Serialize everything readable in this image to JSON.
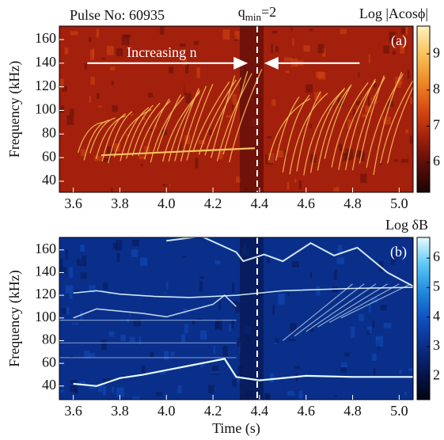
{
  "chart_data": [
    {
      "type": "spectrogram",
      "title": "Pulse No: 60935",
      "panel_label": "(a)",
      "marker_label": {
        "base": "q",
        "subscript": "min",
        "suffix": "=2"
      },
      "marker_x": 4.39,
      "annotation": "Increasing n",
      "ylabel": "Frequency (kHz)",
      "colorbar_label": "Log |Acosϕ|",
      "xlim": [
        3.54,
        5.06
      ],
      "xticks": [
        3.6,
        3.8,
        {
          "value": 4,
          "label": "4.0"
        },
        4.2,
        4.4,
        4.6,
        4.8,
        {
          "value": 5,
          "label": "5.0"
        }
      ],
      "ylim": [
        30.6,
        171.4
      ],
      "yticks": [
        40,
        60,
        80,
        100,
        120,
        140,
        160
      ],
      "clim": [
        5.17,
        9.77
      ],
      "cticks": [
        6,
        7,
        8,
        9
      ],
      "colormap": [
        "#1a0505",
        "#5a0d08",
        "#a3200c",
        "#d84a12",
        "#f08a25",
        "#f8c25a",
        "#fff3c0"
      ]
    },
    {
      "type": "spectrogram",
      "panel_label": "(b)",
      "ylabel": "Frequency (kHz)",
      "xlabel": "Time (s)",
      "colorbar_label": "Log δB",
      "marker_x": 4.39,
      "xlim": [
        3.54,
        5.06
      ],
      "xticks": [
        3.6,
        3.8,
        {
          "value": 4,
          "label": "4.0"
        },
        4.2,
        4.4,
        4.6,
        4.8,
        {
          "value": 5,
          "label": "5.0"
        }
      ],
      "ylim": [
        28,
        171
      ],
      "yticks": [
        40,
        60,
        80,
        100,
        120,
        140,
        160
      ],
      "clim": [
        1.2,
        6.7
      ],
      "cticks": [
        2,
        3,
        4,
        5,
        6
      ],
      "colormap": [
        "#000510",
        "#07164f",
        "#0a2f8a",
        "#1050c0",
        "#1e8ae0",
        "#5cc8f5",
        "#e6fbff"
      ]
    }
  ]
}
